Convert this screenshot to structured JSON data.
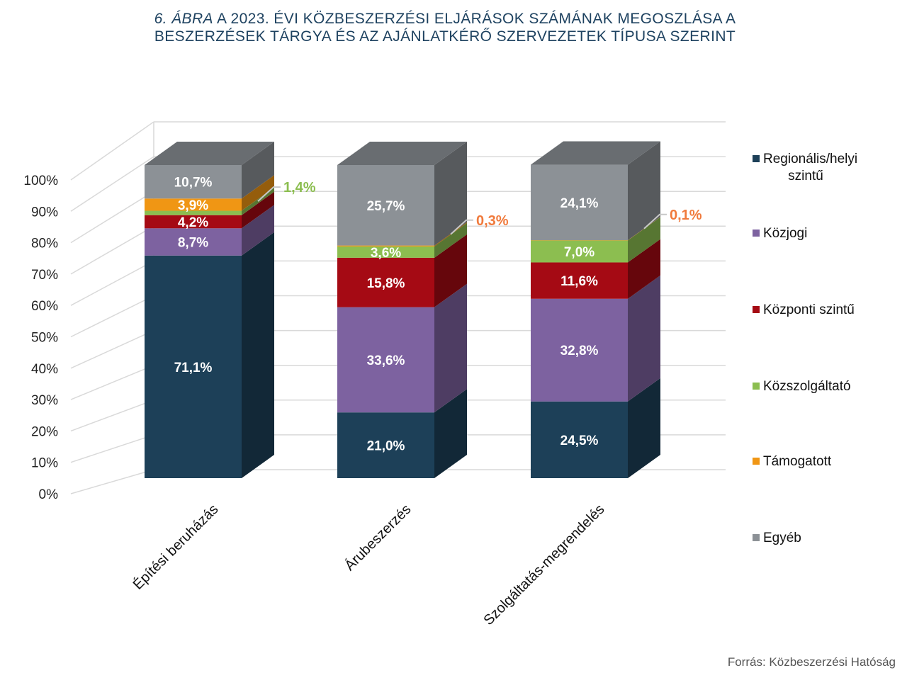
{
  "title": {
    "prefix": "6. ÁBRA",
    "line1_rest": " A 2023. ÉVI KÖZBESZERZÉSI ELJÁRÁSOK SZÁMÁNAK  MEGOSZLÁSA A",
    "line2": "BESZERZÉSEK TÁRGYA ÉS AZ AJÁNLATKÉRŐ SZERVEZETEK TÍPUSA SZERINT"
  },
  "source": "Forrás: Közbeszerzési Hatóság",
  "chart_data": {
    "type": "bar",
    "stacked": true,
    "style": "3d",
    "categories": [
      "Építési beruházás",
      "Árubeszerzés",
      "Szolgáltatás-megrendelés"
    ],
    "series": [
      {
        "name": "Regionális/helyi szintű",
        "color": "#1d4058",
        "values": [
          71.1,
          21.0,
          24.5
        ],
        "labels": [
          "71,1%",
          "21,0%",
          "24,5%"
        ]
      },
      {
        "name": "Közjogi",
        "color": "#7d62a0",
        "values": [
          8.7,
          33.6,
          32.8
        ],
        "labels": [
          "8,7%",
          "33,6%",
          "32,8%"
        ]
      },
      {
        "name": "Központi szintű",
        "color": "#a50a14",
        "values": [
          4.2,
          15.8,
          11.6
        ],
        "labels": [
          "4,2%",
          "15,8%",
          "11,6%"
        ]
      },
      {
        "name": "Közszolgáltató",
        "color": "#8cbe50",
        "values": [
          1.4,
          3.6,
          7.0
        ],
        "labels": [
          "1,4%",
          "3,6%",
          "7,0%"
        ]
      },
      {
        "name": "Támogatott",
        "color": "#f09614",
        "values": [
          3.9,
          0.3,
          0.1
        ],
        "labels": [
          "3,9%",
          "0,3%",
          "0,1%"
        ]
      },
      {
        "name": "Egyéb",
        "color": "#8c9196",
        "values": [
          10.7,
          25.7,
          24.1
        ],
        "labels": [
          "10,7%",
          "25,7%",
          "24,1%"
        ]
      }
    ],
    "callouts": [
      {
        "category": 0,
        "series": 3,
        "label": "1,4%",
        "color": "#8cbe50"
      },
      {
        "category": 1,
        "series": 4,
        "label": "0,3%",
        "color": "#f07a3c"
      },
      {
        "category": 2,
        "series": 4,
        "label": "0,1%",
        "color": "#f07a3c"
      }
    ],
    "y_ticks": [
      "0%",
      "10%",
      "20%",
      "30%",
      "40%",
      "50%",
      "60%",
      "70%",
      "80%",
      "90%",
      "100%"
    ],
    "ylim": [
      0,
      100
    ],
    "grid": true,
    "legend_position": "right"
  }
}
